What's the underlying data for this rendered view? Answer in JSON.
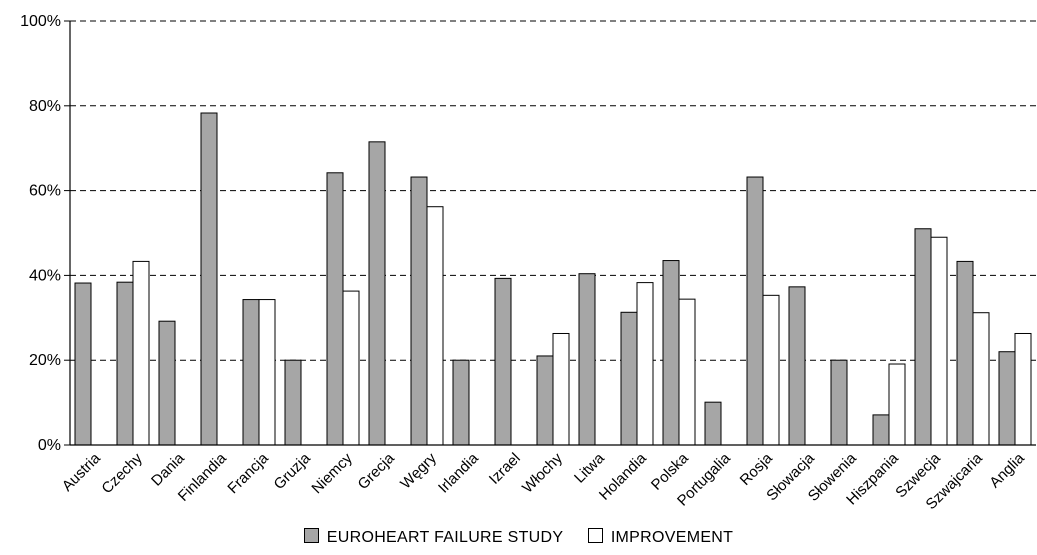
{
  "chart_data": {
    "type": "bar",
    "categories": [
      "Austria",
      "Czechy",
      "Dania",
      "Finlandia",
      "Francja",
      "Gruzja",
      "Niemcy",
      "Grecja",
      "Węgry",
      "Irlandia",
      "Izrael",
      "Włochy",
      "Litwa",
      "Holandia",
      "Polska",
      "Portugalia",
      "Rosja",
      "Słowacja",
      "Słowenia",
      "Hiszpania",
      "Szwecja",
      "Szwajcaria",
      "Anglia"
    ],
    "series": [
      {
        "name": "EUROHEART FAILURE STUDY",
        "color": "#a6a6a6",
        "values": [
          38.2,
          38.4,
          29.2,
          78.3,
          34.3,
          20.0,
          64.2,
          71.5,
          63.2,
          20.0,
          39.3,
          21.0,
          40.4,
          31.3,
          43.5,
          10.1,
          63.2,
          37.3,
          20.0,
          7.1,
          51.0,
          43.3,
          22.0
        ]
      },
      {
        "name": "IMPROVEMENT",
        "color": "#ffffff",
        "values": [
          null,
          43.3,
          null,
          null,
          34.3,
          null,
          36.3,
          null,
          56.2,
          null,
          null,
          26.3,
          null,
          38.3,
          34.4,
          null,
          35.3,
          null,
          null,
          19.1,
          49.0,
          31.2,
          26.3
        ]
      }
    ],
    "yticks": [
      "0%",
      "20%",
      "40%",
      "60%",
      "80%",
      "100%"
    ],
    "ylim": [
      0,
      100
    ],
    "grid": "dashed horizontal at 20% intervals",
    "legend_position": "bottom-center"
  }
}
